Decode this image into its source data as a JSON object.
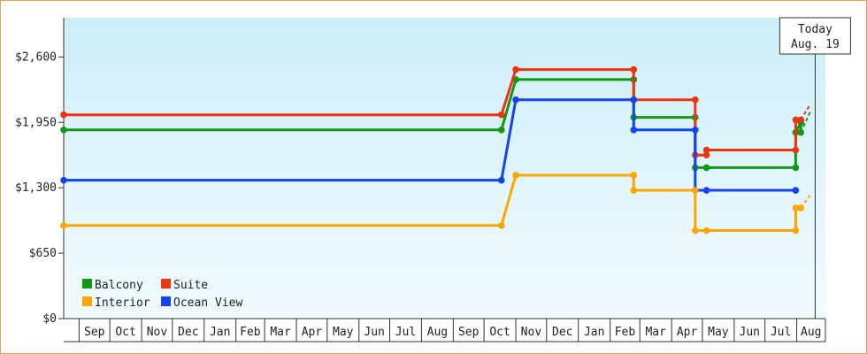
{
  "chart_data": {
    "type": "line",
    "title": "",
    "xlabel": "",
    "ylabel": "",
    "step": true,
    "x_dates": true,
    "xlim": [
      "2010-08-17",
      "2012-08-29"
    ],
    "ylim": [
      0,
      2990
    ],
    "y_ticks": [
      0,
      650,
      1300,
      1950,
      2600
    ],
    "y_tick_labels": [
      "$0",
      "$650",
      "$1,300",
      "$1,950",
      "$2,600"
    ],
    "x_tick_labels": [
      "Sep",
      "Oct",
      "Nov",
      "Dec",
      "Jan",
      "Feb",
      "Mar",
      "Apr",
      "May",
      "Jun",
      "Jul",
      "Aug",
      "Sep",
      "Oct",
      "Nov",
      "Dec",
      "Jan",
      "Feb",
      "Mar",
      "Apr",
      "May",
      "Jun",
      "Jul",
      "Aug"
    ],
    "grid": false,
    "background": "gradient light blue",
    "legend_placement": "bottom-left",
    "today_marker": {
      "label_line1": "Today",
      "label_line2": "Aug. 19",
      "date": "2012-08-19"
    },
    "series": [
      {
        "name": "Balcony",
        "color": "#119911",
        "points": [
          [
            "2010-08-17",
            1875
          ],
          [
            "2011-10-18",
            1875
          ],
          [
            "2011-11-01",
            2375
          ],
          [
            "2012-02-24",
            2375
          ],
          [
            "2012-02-24",
            2000
          ],
          [
            "2012-04-24",
            2000
          ],
          [
            "2012-04-24",
            1500
          ],
          [
            "2012-05-05",
            1500
          ],
          [
            "2012-07-31",
            1500
          ],
          [
            "2012-07-31",
            1850
          ],
          [
            "2012-08-05",
            1950
          ],
          [
            "2012-08-05",
            1850
          ]
        ],
        "projection": [
          [
            "2012-08-05",
            1850
          ],
          [
            "2012-08-14",
            2050
          ]
        ]
      },
      {
        "name": "Suite",
        "color": "#ee3311",
        "points": [
          [
            "2010-08-17",
            2025
          ],
          [
            "2011-10-18",
            2025
          ],
          [
            "2011-11-01",
            2475
          ],
          [
            "2012-02-24",
            2475
          ],
          [
            "2012-02-24",
            2175
          ],
          [
            "2012-04-24",
            2175
          ],
          [
            "2012-04-24",
            1625
          ],
          [
            "2012-05-05",
            1625
          ],
          [
            "2012-05-05",
            1675
          ],
          [
            "2012-07-31",
            1675
          ],
          [
            "2012-07-31",
            1975
          ],
          [
            "2012-08-05",
            1975
          ]
        ],
        "projection": [
          [
            "2012-08-05",
            1975
          ],
          [
            "2012-08-14",
            2125
          ]
        ]
      },
      {
        "name": "Ocean View",
        "color": "#1144ee",
        "points": [
          [
            "2010-08-17",
            1375
          ],
          [
            "2011-10-18",
            1375
          ],
          [
            "2011-11-01",
            2175
          ],
          [
            "2012-02-24",
            2175
          ],
          [
            "2012-02-24",
            1875
          ],
          [
            "2012-04-24",
            1875
          ],
          [
            "2012-04-24",
            1275
          ],
          [
            "2012-05-05",
            1275
          ],
          [
            "2012-07-31",
            1275
          ]
        ],
        "projection": []
      },
      {
        "name": "Interior",
        "color": "#ffa500",
        "points": [
          [
            "2010-08-17",
            925
          ],
          [
            "2011-10-18",
            925
          ],
          [
            "2011-11-01",
            1425
          ],
          [
            "2012-02-24",
            1425
          ],
          [
            "2012-02-24",
            1275
          ],
          [
            "2012-04-24",
            1275
          ],
          [
            "2012-04-24",
            875
          ],
          [
            "2012-05-05",
            875
          ],
          [
            "2012-07-31",
            875
          ],
          [
            "2012-07-31",
            1100
          ],
          [
            "2012-08-05",
            1100
          ]
        ],
        "projection": [
          [
            "2012-08-05",
            1100
          ],
          [
            "2012-08-14",
            1225
          ]
        ]
      }
    ]
  },
  "legend": [
    {
      "name": "Balcony",
      "color": "#119911"
    },
    {
      "name": "Suite",
      "color": "#ee3311"
    },
    {
      "name": "Interior",
      "color": "#ffa500"
    },
    {
      "name": "Ocean View",
      "color": "#1144ee"
    }
  ]
}
